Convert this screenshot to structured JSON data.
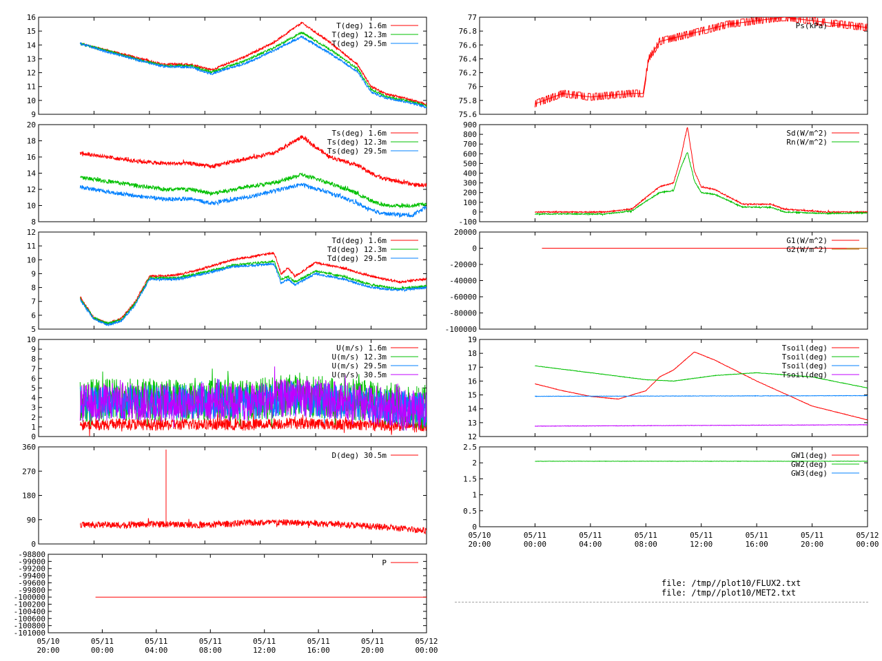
{
  "x_ticks": {
    "positions": [
      0,
      4,
      8,
      12,
      16,
      20,
      24,
      28
    ],
    "top": [
      "05/10",
      "05/11",
      "05/11",
      "05/11",
      "05/11",
      "05/11",
      "05/11",
      "05/12"
    ],
    "bottom": [
      "20:00",
      "00:00",
      "04:00",
      "08:00",
      "12:00",
      "16:00",
      "20:00",
      "00:00"
    ]
  },
  "files": [
    "file: /tmp//plot10/FLUX2.txt",
    "file: /tmp//plot10/MET2.txt"
  ],
  "colors": {
    "red": "#ff0000",
    "green": "#00c000",
    "blue": "#0080ff",
    "purple": "#c000ff"
  },
  "chart_data": [
    {
      "id": "p-temp",
      "type": "line",
      "ylim": [
        9,
        16
      ],
      "yticks": [
        "9",
        "10",
        "11",
        "12",
        "13",
        "14",
        "15",
        "16"
      ],
      "series": [
        {
          "name": "T(deg)  1.6m",
          "color": "#ff0000",
          "x": [
            3,
            5,
            7,
            9,
            11,
            12.5,
            13.5,
            15,
            17,
            19,
            21,
            23,
            24,
            25,
            27,
            28
          ],
          "y": [
            14.1,
            13.6,
            13.1,
            12.6,
            12.6,
            12.2,
            12.6,
            13.2,
            14.2,
            15.6,
            14.2,
            12.6,
            11.0,
            10.5,
            10.0,
            9.7
          ]
        },
        {
          "name": "T(deg) 12.3m",
          "color": "#00c000",
          "x": [
            3,
            5,
            7,
            9,
            11,
            12.5,
            13.5,
            15,
            17,
            19,
            21,
            23,
            24,
            25,
            27,
            28
          ],
          "y": [
            14.1,
            13.55,
            13.0,
            12.5,
            12.5,
            12.05,
            12.4,
            12.9,
            13.8,
            14.9,
            13.7,
            12.3,
            10.8,
            10.3,
            9.9,
            9.6
          ]
        },
        {
          "name": "T(deg) 29.5m",
          "color": "#0080ff",
          "x": [
            3,
            5,
            7,
            9,
            11,
            12.5,
            13.5,
            15,
            17,
            19,
            21,
            23,
            24,
            25,
            27,
            28
          ],
          "y": [
            14.1,
            13.5,
            12.95,
            12.45,
            12.4,
            11.9,
            12.25,
            12.7,
            13.6,
            14.6,
            13.4,
            12.1,
            10.6,
            10.2,
            9.8,
            9.5
          ]
        }
      ]
    },
    {
      "id": "p-sonic",
      "type": "line",
      "ylim": [
        8,
        20
      ],
      "yticks": [
        "8",
        "10",
        "12",
        "14",
        "16",
        "18",
        "20"
      ],
      "series": [
        {
          "name": "Ts(deg)  1.6m",
          "color": "#ff0000",
          "x": [
            3,
            5,
            7,
            9,
            11,
            12.5,
            13.5,
            15,
            17,
            19,
            21,
            23,
            24,
            25,
            27,
            28
          ],
          "y": [
            16.5,
            16.0,
            15.5,
            15.2,
            15.2,
            14.8,
            15.2,
            15.8,
            16.5,
            18.5,
            16.0,
            15.0,
            14.0,
            13.3,
            12.6,
            12.5
          ]
        },
        {
          "name": "Ts(deg) 12.3m",
          "color": "#00c000",
          "x": [
            3,
            5,
            7,
            9,
            11,
            12.5,
            13.5,
            15,
            17,
            19,
            21,
            23,
            24,
            25,
            27,
            28
          ],
          "y": [
            13.5,
            13.0,
            12.5,
            12.0,
            12.0,
            11.5,
            11.8,
            12.3,
            12.8,
            13.8,
            12.8,
            11.5,
            10.6,
            10.0,
            10.0,
            10.2
          ]
        },
        {
          "name": "Ts(deg) 29.5m",
          "color": "#0080ff",
          "x": [
            3,
            5,
            7,
            9,
            11,
            12.5,
            13.5,
            15,
            17,
            19,
            21,
            23,
            24,
            25,
            27,
            28
          ],
          "y": [
            12.3,
            11.7,
            11.2,
            10.8,
            10.8,
            10.3,
            10.6,
            11.0,
            11.8,
            12.6,
            11.6,
            10.3,
            9.4,
            9.0,
            8.8,
            9.8
          ]
        }
      ]
    },
    {
      "id": "p-dew",
      "type": "line",
      "ylim": [
        5,
        12
      ],
      "yticks": [
        "5",
        "6",
        "7",
        "8",
        "9",
        "10",
        "11",
        "12"
      ],
      "series": [
        {
          "name": "Td(deg)  1.6m",
          "color": "#ff0000",
          "x": [
            3,
            4,
            5,
            6,
            7,
            8,
            10,
            12,
            14,
            17,
            17.5,
            18,
            18.5,
            20,
            22,
            24,
            26,
            28
          ],
          "y": [
            7.3,
            5.8,
            5.4,
            5.8,
            7.0,
            8.8,
            8.9,
            9.4,
            10.0,
            10.5,
            9.0,
            9.4,
            8.8,
            9.8,
            9.4,
            8.8,
            8.4,
            8.6
          ]
        },
        {
          "name": "Td(deg) 12.3m",
          "color": "#00c000",
          "x": [
            3,
            4,
            5,
            6,
            7,
            8,
            10,
            12,
            14,
            17,
            17.5,
            18,
            18.5,
            20,
            22,
            24,
            26,
            28
          ],
          "y": [
            7.2,
            5.8,
            5.4,
            5.7,
            6.9,
            8.7,
            8.7,
            9.1,
            9.6,
            9.9,
            8.6,
            8.8,
            8.4,
            9.2,
            8.8,
            8.2,
            7.9,
            8.1
          ]
        },
        {
          "name": "Td(deg) 29.5m",
          "color": "#0080ff",
          "x": [
            3,
            4,
            5,
            6,
            7,
            8,
            10,
            12,
            14,
            17,
            17.5,
            18,
            18.5,
            20,
            22,
            24,
            26,
            28
          ],
          "y": [
            7.1,
            5.7,
            5.3,
            5.6,
            6.8,
            8.6,
            8.6,
            9.0,
            9.5,
            9.7,
            8.3,
            8.6,
            8.2,
            9.0,
            8.6,
            8.0,
            7.8,
            8.0
          ]
        }
      ]
    },
    {
      "id": "p-wind",
      "type": "line",
      "ylim": [
        0,
        10
      ],
      "yticks": [
        "0",
        "1",
        "2",
        "3",
        "4",
        "5",
        "6",
        "7",
        "8",
        "9",
        "10"
      ],
      "series": [
        {
          "name": "U(m/s)  1.6m",
          "color": "#ff0000",
          "x": [
            3,
            6,
            9,
            12,
            15,
            18,
            21,
            24,
            28
          ],
          "y": [
            1.2,
            1.3,
            1.2,
            1.3,
            1.2,
            1.4,
            1.3,
            1.2,
            1.1
          ]
        },
        {
          "name": "U(m/s) 12.3m",
          "color": "#00c000",
          "x": [
            3,
            6,
            9,
            12,
            15,
            18,
            21,
            24,
            28
          ],
          "y": [
            3.7,
            3.8,
            3.8,
            3.9,
            3.7,
            4.2,
            4.0,
            3.6,
            2.9
          ]
        },
        {
          "name": "U(m/s) 29.5m",
          "color": "#0080ff",
          "x": [
            3,
            6,
            9,
            12,
            15,
            18,
            21,
            24,
            28
          ],
          "y": [
            3.4,
            3.5,
            3.5,
            3.6,
            3.4,
            3.9,
            3.7,
            3.3,
            2.7
          ]
        },
        {
          "name": "U(m/s) 30.5m",
          "color": "#c000ff",
          "x": [
            3,
            6,
            9,
            12,
            15,
            18,
            21,
            24,
            28
          ],
          "y": [
            3.4,
            3.6,
            3.5,
            3.7,
            3.5,
            4.0,
            3.8,
            3.3,
            2.6
          ]
        }
      ]
    },
    {
      "id": "p-dir",
      "type": "line",
      "ylim": [
        0,
        360
      ],
      "yticks": [
        "0",
        "90",
        "180",
        "270",
        "360"
      ],
      "series": [
        {
          "name": "D(deg)  30.5m",
          "color": "#ff0000",
          "x": [
            3,
            6,
            9,
            12,
            15,
            18,
            21,
            24,
            28
          ],
          "y": [
            72,
            70,
            74,
            70,
            78,
            80,
            75,
            65,
            50
          ]
        }
      ]
    },
    {
      "id": "p-press",
      "type": "line",
      "ylim": [
        -101000,
        -98800
      ],
      "yticks": [
        "-101000",
        "-100800",
        "-100600",
        "-100400",
        "-100200",
        "-100000",
        "-99800",
        "-99600",
        "-99400",
        "-99200",
        "-99000",
        "-98800"
      ],
      "series": [
        {
          "name": "P",
          "color": "#ff0000",
          "x": [
            3.5,
            28
          ],
          "y": [
            -100000,
            -100000
          ]
        }
      ]
    },
    {
      "id": "p-ps",
      "type": "line",
      "ylim": [
        75.6,
        77
      ],
      "yticks": [
        "75.6",
        "75.8",
        "76",
        "76.2",
        "76.4",
        "76.6",
        "76.8",
        "77"
      ],
      "series": [
        {
          "name": "Ps(kPa)",
          "color": "#ff0000",
          "x": [
            4,
            6,
            8,
            11,
            11.8,
            12.2,
            13,
            14,
            16,
            17,
            18,
            20,
            22,
            26,
            28
          ],
          "y": [
            75.75,
            75.9,
            75.85,
            75.9,
            75.9,
            76.4,
            76.65,
            76.7,
            76.8,
            76.85,
            76.9,
            76.95,
            77.0,
            76.9,
            76.85
          ]
        }
      ]
    },
    {
      "id": "p-rad",
      "type": "line",
      "ylim": [
        -100,
        900
      ],
      "yticks": [
        "-100",
        "0",
        "100",
        "200",
        "300",
        "400",
        "500",
        "600",
        "700",
        "800",
        "900"
      ],
      "series": [
        {
          "name": "Sd(W/m^2)",
          "color": "#ff0000",
          "x": [
            4,
            9,
            11,
            12,
            13,
            14,
            14.5,
            15,
            15.5,
            16,
            17,
            19,
            21,
            22,
            25,
            28
          ],
          "y": [
            0,
            0,
            30,
            150,
            260,
            300,
            550,
            880,
            420,
            260,
            230,
            80,
            80,
            30,
            0,
            0
          ]
        },
        {
          "name": "Rn(W/m^2)",
          "color": "#00c000",
          "x": [
            4,
            9,
            11,
            12,
            13,
            14,
            14.5,
            15,
            15.5,
            16,
            17,
            19,
            21,
            22,
            25,
            28
          ],
          "y": [
            -20,
            -20,
            10,
            110,
            200,
            220,
            450,
            620,
            320,
            200,
            180,
            50,
            50,
            0,
            -15,
            -10
          ]
        }
      ]
    },
    {
      "id": "p-ground",
      "type": "line",
      "ylim": [
        -100000,
        20000
      ],
      "yticks": [
        "-100000",
        "-80000",
        "-60000",
        "-40000",
        "-20000",
        "0",
        "20000"
      ],
      "series": [
        {
          "name": "G1(W/m^2)",
          "color": "#ff0000",
          "x": [
            4.5,
            28
          ],
          "y": [
            0,
            0
          ]
        },
        {
          "name": "G2(W/m^2)",
          "color": "#b06000",
          "x": [
            26.5,
            28
          ],
          "y": [
            0,
            0
          ]
        }
      ]
    },
    {
      "id": "p-soil",
      "type": "line",
      "ylim": [
        12,
        19
      ],
      "yticks": [
        "12",
        "13",
        "14",
        "15",
        "16",
        "17",
        "18",
        "19"
      ],
      "series": [
        {
          "name": "Tsoil(deg)",
          "color": "#ff0000",
          "x": [
            4,
            6,
            8,
            10,
            12,
            13,
            14,
            15.5,
            17,
            18,
            20,
            22,
            24,
            26,
            28
          ],
          "y": [
            15.8,
            15.3,
            14.9,
            14.7,
            15.3,
            16.3,
            16.8,
            18.1,
            17.5,
            17.0,
            16.0,
            15.1,
            14.2,
            13.7,
            13.2
          ]
        },
        {
          "name": "Tsoil(deg)",
          "color": "#00c000",
          "x": [
            4,
            8,
            12,
            14,
            17,
            20,
            24,
            28
          ],
          "y": [
            17.1,
            16.6,
            16.1,
            16.0,
            16.4,
            16.6,
            16.3,
            15.5
          ]
        },
        {
          "name": "Tsoil(deg)",
          "color": "#0080ff",
          "x": [
            4,
            28
          ],
          "y": [
            14.9,
            14.95
          ]
        },
        {
          "name": "Tsoil(deg)",
          "color": "#c000ff",
          "x": [
            4,
            28
          ],
          "y": [
            12.75,
            12.85
          ]
        }
      ]
    },
    {
      "id": "p-gw",
      "type": "line",
      "ylim": [
        0,
        2.5
      ],
      "yticks": [
        "0",
        "0.5",
        "1",
        "1.5",
        "2",
        "2.5"
      ],
      "series": [
        {
          "name": "GW1(deg)",
          "color": "#ff0000",
          "x": [],
          "y": []
        },
        {
          "name": "GW2(deg)",
          "color": "#00c000",
          "x": [
            4,
            28
          ],
          "y": [
            2.05,
            2.05
          ]
        },
        {
          "name": "GW3(deg)",
          "color": "#0080ff",
          "x": [],
          "y": []
        }
      ]
    }
  ]
}
